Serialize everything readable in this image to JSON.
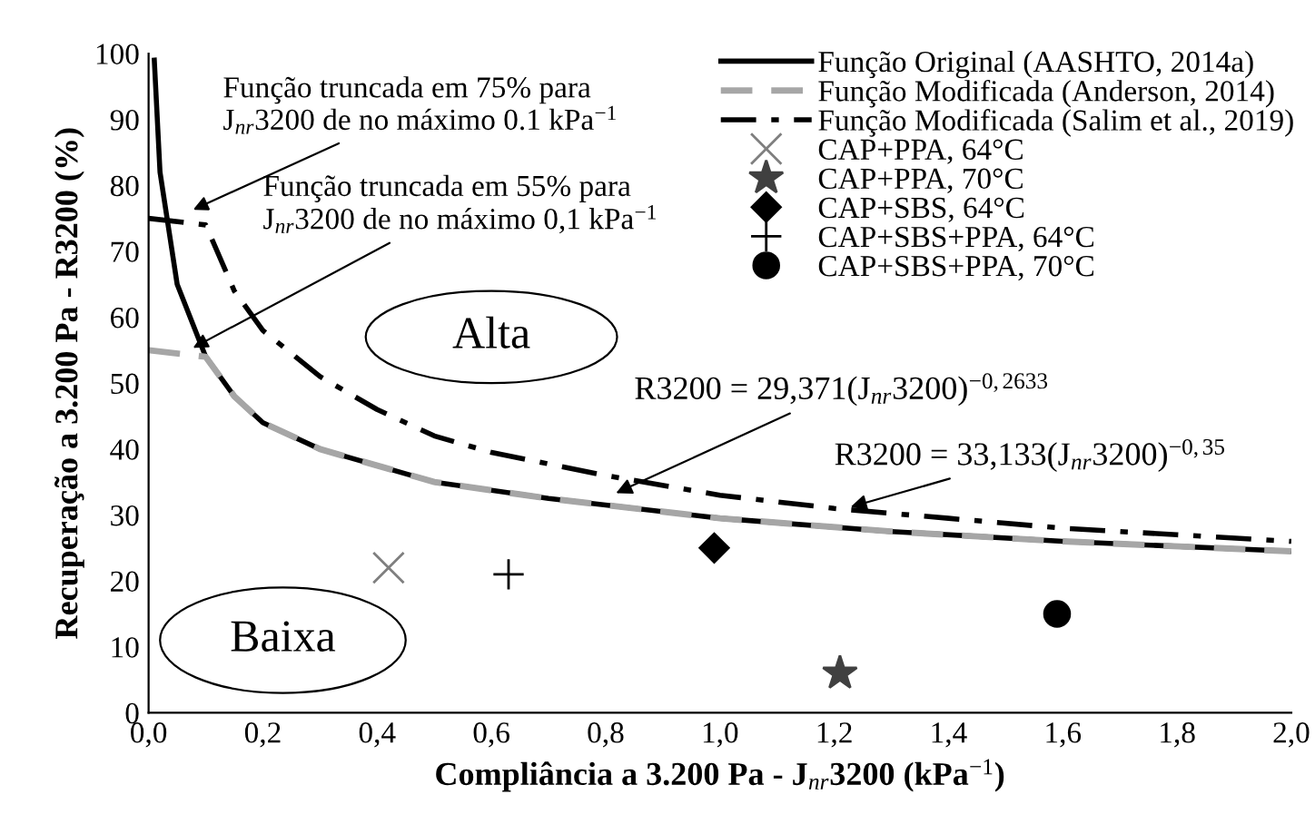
{
  "chart_data": {
    "type": "line",
    "xlabel": "Compliância a 3.200 Pa - J$_{nr}$3200 (kPa$^{−1}$)",
    "ylabel": "Recuperação a 3.200 Pa - R3200 (%)",
    "xlim": [
      0,
      2.0
    ],
    "ylim": [
      0,
      100
    ],
    "xticks": [
      {
        "value": 0,
        "label": "0,0"
      },
      {
        "value": 0.2,
        "label": "0,2"
      },
      {
        "value": 0.4,
        "label": "0,4"
      },
      {
        "value": 0.6,
        "label": "0,6"
      },
      {
        "value": 0.8,
        "label": "0,8"
      },
      {
        "value": 1.0,
        "label": "1,0"
      },
      {
        "value": 1.2,
        "label": "1,2"
      },
      {
        "value": 1.4,
        "label": "1,4"
      },
      {
        "value": 1.6,
        "label": "1,6"
      },
      {
        "value": 1.8,
        "label": "1,8"
      },
      {
        "value": 2.0,
        "label": "2,0"
      }
    ],
    "yticks": [
      0,
      10,
      20,
      30,
      40,
      50,
      60,
      70,
      80,
      90,
      100
    ],
    "grid": false,
    "legend": "top right",
    "series": [
      {
        "name": "Função Original (AASHTO, 2014a)",
        "color": "#000000",
        "line_style": "solid",
        "marker": "none",
        "x": [
          0.01,
          0.02,
          0.05,
          0.1,
          0.15,
          0.2,
          0.3,
          0.5,
          0.7,
          1.0,
          1.3,
          1.6,
          2.0
        ],
        "values": [
          99,
          82,
          65,
          54,
          48,
          44,
          40,
          35,
          32.5,
          29.5,
          27.5,
          26,
          24.5
        ]
      },
      {
        "name": "Função Modificada (Anderson, 2014)",
        "color": "#a6a6a6",
        "line_style": "dashed",
        "marker": "none",
        "x": [
          0,
          0.1,
          0.15,
          0.2,
          0.3,
          0.5,
          0.7,
          1.0,
          1.3,
          1.6,
          2.0
        ],
        "values": [
          55,
          54,
          48,
          44,
          40,
          35,
          32.5,
          29.5,
          27.5,
          26,
          24.5
        ]
      },
      {
        "name": "Função Modificada (Salim et al., 2019)",
        "color": "#000000",
        "line_style": "dashdot",
        "marker": "none",
        "x": [
          0,
          0.1,
          0.15,
          0.2,
          0.3,
          0.4,
          0.5,
          0.6,
          0.8,
          1.0,
          1.2,
          1.4,
          1.6,
          1.8,
          2.0
        ],
        "values": [
          75,
          74,
          64,
          58,
          51,
          46,
          42,
          39.5,
          36,
          33,
          31,
          29.5,
          28,
          27,
          26
        ]
      },
      {
        "name": "CAP+PPA, 64°C",
        "type": "scatter",
        "color": "#7f7f7f",
        "marker": "cross",
        "x": [
          0.42
        ],
        "values": [
          22
        ]
      },
      {
        "name": "CAP+PPA, 70°C",
        "type": "scatter",
        "color": "#404040",
        "marker": "star",
        "x": [
          1.21
        ],
        "values": [
          6
        ]
      },
      {
        "name": "CAP+SBS, 64°C",
        "type": "scatter",
        "color": "#000000",
        "marker": "diamond",
        "x": [
          0.99
        ],
        "values": [
          25
        ]
      },
      {
        "name": "CAP+SBS+PPA, 64°C",
        "type": "scatter",
        "color": "#000000",
        "marker": "plus",
        "x": [
          0.63
        ],
        "values": [
          21
        ]
      },
      {
        "name": "CAP+SBS+PPA, 70°C",
        "type": "scatter",
        "color": "#000000",
        "marker": "circle",
        "x": [
          1.59
        ],
        "values": [
          15
        ]
      }
    ],
    "annotations": [
      {
        "text": "Função truncada em 75% para\nJ$_{nr}$3200 de no máximo 0.1 kPa$^{−1}$",
        "x": 0.07,
        "y": 76
      },
      {
        "text": "Função truncada em 55% para\nJ$_{nr}$3200 de no máximo 0,1 kPa$^{−1}$",
        "x": 0.07,
        "y": 55
      },
      {
        "text": "R3200 = 29,371(J$_{nr}$3200)$^{−0,2633}$",
        "x": 0.81,
        "y": 33
      },
      {
        "text": "R3200 = 33,133(J$_{nr}$3200)$^{−0,35}$",
        "x": 1.22,
        "y": 31
      },
      "Alta",
      "Baixa"
    ]
  }
}
